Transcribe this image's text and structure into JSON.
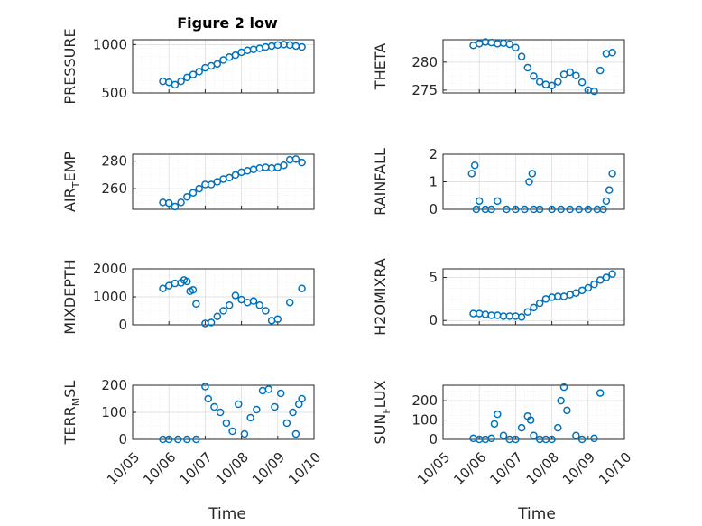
{
  "figure": {
    "title": "Figure 2 low",
    "xlabel": "Time",
    "x_ticks": [
      "10/05",
      "10/06",
      "10/07",
      "10/08",
      "10/09",
      "10/10"
    ],
    "marker_color": "#0072BD"
  },
  "chart_data": [
    {
      "type": "scatter",
      "ylabel": "PRESSURE",
      "ylim": [
        500,
        1050
      ],
      "yticks": [
        500,
        1000
      ],
      "x": [
        "10/05 20:00",
        "10/06 00:00",
        "10/06 04:00",
        "10/06 08:00",
        "10/06 12:00",
        "10/06 16:00",
        "10/06 20:00",
        "10/07 00:00",
        "10/07 04:00",
        "10/07 08:00",
        "10/07 12:00",
        "10/07 16:00",
        "10/07 20:00",
        "10/08 00:00",
        "10/08 04:00",
        "10/08 08:00",
        "10/08 12:00",
        "10/08 16:00",
        "10/08 20:00",
        "10/09 00:00",
        "10/09 04:00",
        "10/09 08:00",
        "10/09 12:00",
        "10/09 16:00"
      ],
      "y": [
        620,
        610,
        585,
        620,
        660,
        690,
        720,
        760,
        780,
        800,
        840,
        870,
        890,
        920,
        940,
        950,
        960,
        975,
        985,
        995,
        1000,
        995,
        985,
        975
      ]
    },
    {
      "type": "scatter",
      "ylabel": "THETA",
      "ylim": [
        274.5,
        284
      ],
      "yticks": [
        275,
        280
      ],
      "x": [
        "10/05 20:00",
        "10/06 00:00",
        "10/06 04:00",
        "10/06 08:00",
        "10/06 12:00",
        "10/06 16:00",
        "10/06 20:00",
        "10/07 00:00",
        "10/07 04:00",
        "10/07 08:00",
        "10/07 12:00",
        "10/07 16:00",
        "10/07 20:00",
        "10/08 00:00",
        "10/08 04:00",
        "10/08 08:00",
        "10/08 12:00",
        "10/08 16:00",
        "10/08 20:00",
        "10/09 00:00",
        "10/09 04:00",
        "10/09 08:00",
        "10/09 12:00",
        "10/09 16:00"
      ],
      "y": [
        283,
        283.3,
        283.6,
        283.5,
        283.3,
        283.4,
        283.2,
        282.6,
        281,
        279,
        277.5,
        276.5,
        276,
        275.8,
        276.5,
        277.8,
        278.2,
        277.6,
        276.4,
        275,
        274.8,
        278.5,
        281.5,
        281.7
      ]
    },
    {
      "type": "scatter",
      "ylabel": "AIR_TEMP",
      "ylim": [
        245,
        285
      ],
      "yticks": [
        260,
        280
      ],
      "x": [
        "10/05 20:00",
        "10/06 00:00",
        "10/06 04:00",
        "10/06 08:00",
        "10/06 12:00",
        "10/06 16:00",
        "10/06 20:00",
        "10/07 00:00",
        "10/07 04:00",
        "10/07 08:00",
        "10/07 12:00",
        "10/07 16:00",
        "10/07 20:00",
        "10/08 00:00",
        "10/08 04:00",
        "10/08 08:00",
        "10/08 12:00",
        "10/08 16:00",
        "10/08 20:00",
        "10/09 00:00",
        "10/09 04:00",
        "10/09 08:00",
        "10/09 12:00",
        "10/09 16:00"
      ],
      "y": [
        250,
        249.5,
        247,
        250,
        254,
        257,
        260,
        263,
        263,
        265,
        267,
        268,
        270,
        272,
        273,
        274,
        275,
        275.5,
        275,
        275.5,
        277,
        281,
        281.5,
        279
      ]
    },
    {
      "type": "scatter",
      "ylabel": "RAINFALL",
      "ylim": [
        0,
        2
      ],
      "yticks": [
        0,
        1,
        2
      ],
      "x": [
        "10/05 19:00",
        "10/05 21:00",
        "10/05 22:00",
        "10/06 00:00",
        "10/06 04:00",
        "10/06 08:00",
        "10/06 12:00",
        "10/06 18:00",
        "10/07 00:00",
        "10/07 06:00",
        "10/07 09:00",
        "10/07 11:00",
        "10/07 12:00",
        "10/07 16:00",
        "10/08 00:00",
        "10/08 06:00",
        "10/08 12:00",
        "10/08 18:00",
        "10/09 00:00",
        "10/09 06:00",
        "10/09 10:00",
        "10/09 12:00",
        "10/09 14:00",
        "10/09 16:00"
      ],
      "y": [
        1.3,
        1.6,
        0,
        0.3,
        0,
        0,
        0.3,
        0,
        0,
        0,
        1.0,
        1.3,
        0,
        0,
        0,
        0,
        0,
        0,
        0,
        0,
        0,
        0.3,
        0.7,
        1.3
      ]
    },
    {
      "type": "scatter",
      "ylabel": "MIXDEPTH",
      "ylim": [
        0,
        2000
      ],
      "yticks": [
        0,
        1000,
        2000
      ],
      "x": [
        "10/05 20:00",
        "10/06 00:00",
        "10/06 04:00",
        "10/06 08:00",
        "10/06 10:00",
        "10/06 12:00",
        "10/06 14:00",
        "10/06 16:00",
        "10/06 18:00",
        "10/07 00:00",
        "10/07 04:00",
        "10/07 08:00",
        "10/07 12:00",
        "10/07 16:00",
        "10/07 20:00",
        "10/08 00:00",
        "10/08 04:00",
        "10/08 08:00",
        "10/08 12:00",
        "10/08 16:00",
        "10/08 20:00",
        "10/09 00:00",
        "10/09 08:00",
        "10/09 16:00"
      ],
      "y": [
        1300,
        1400,
        1480,
        1500,
        1600,
        1550,
        1200,
        1250,
        750,
        50,
        80,
        300,
        500,
        700,
        1050,
        900,
        800,
        850,
        700,
        500,
        150,
        200,
        800,
        1300
      ]
    },
    {
      "type": "scatter",
      "ylabel": "H2OMIXRA",
      "ylim": [
        -0.5,
        6
      ],
      "yticks": [
        0,
        5
      ],
      "x": [
        "10/05 20:00",
        "10/06 00:00",
        "10/06 04:00",
        "10/06 08:00",
        "10/06 12:00",
        "10/06 16:00",
        "10/06 20:00",
        "10/07 00:00",
        "10/07 04:00",
        "10/07 08:00",
        "10/07 12:00",
        "10/07 16:00",
        "10/07 20:00",
        "10/08 00:00",
        "10/08 04:00",
        "10/08 08:00",
        "10/08 12:00",
        "10/08 16:00",
        "10/08 20:00",
        "10/09 00:00",
        "10/09 04:00",
        "10/09 08:00",
        "10/09 12:00",
        "10/09 16:00"
      ],
      "y": [
        0.8,
        0.8,
        0.7,
        0.6,
        0.6,
        0.5,
        0.5,
        0.5,
        0.4,
        1.0,
        1.5,
        2.0,
        2.5,
        2.7,
        2.8,
        2.8,
        3.0,
        3.2,
        3.5,
        3.8,
        4.2,
        4.7,
        5.0,
        5.4
      ]
    },
    {
      "type": "scatter",
      "ylabel": "TERR_MSL",
      "ylim": [
        0,
        200
      ],
      "yticks": [
        0,
        100,
        200
      ],
      "x": [
        "10/05 20:00",
        "10/06 00:00",
        "10/06 06:00",
        "10/06 12:00",
        "10/06 18:00",
        "10/07 00:00",
        "10/07 02:00",
        "10/07 06:00",
        "10/07 10:00",
        "10/07 14:00",
        "10/07 18:00",
        "10/07 22:00",
        "10/08 02:00",
        "10/08 06:00",
        "10/08 10:00",
        "10/08 14:00",
        "10/08 18:00",
        "10/08 22:00",
        "10/09 02:00",
        "10/09 06:00",
        "10/09 10:00",
        "10/09 12:00",
        "10/09 14:00",
        "10/09 16:00"
      ],
      "y": [
        0,
        0,
        0,
        0,
        0,
        195,
        150,
        120,
        100,
        60,
        30,
        130,
        20,
        80,
        110,
        180,
        185,
        120,
        170,
        60,
        100,
        20,
        130,
        150
      ]
    },
    {
      "type": "scatter",
      "ylabel": "SUN_FLUX",
      "ylim": [
        0,
        280
      ],
      "yticks": [
        0,
        100,
        200
      ],
      "x": [
        "10/05 20:00",
        "10/06 00:00",
        "10/06 04:00",
        "10/06 08:00",
        "10/06 10:00",
        "10/06 12:00",
        "10/06 16:00",
        "10/06 20:00",
        "10/07 00:00",
        "10/07 04:00",
        "10/07 08:00",
        "10/07 10:00",
        "10/07 12:00",
        "10/07 16:00",
        "10/07 20:00",
        "10/08 00:00",
        "10/08 04:00",
        "10/08 06:00",
        "10/08 08:00",
        "10/08 10:00",
        "10/08 16:00",
        "10/08 20:00",
        "10/09 04:00",
        "10/09 08:00"
      ],
      "y": [
        5,
        0,
        0,
        5,
        80,
        130,
        20,
        0,
        0,
        60,
        120,
        100,
        20,
        0,
        0,
        0,
        60,
        200,
        270,
        150,
        20,
        0,
        5,
        240
      ]
    }
  ]
}
